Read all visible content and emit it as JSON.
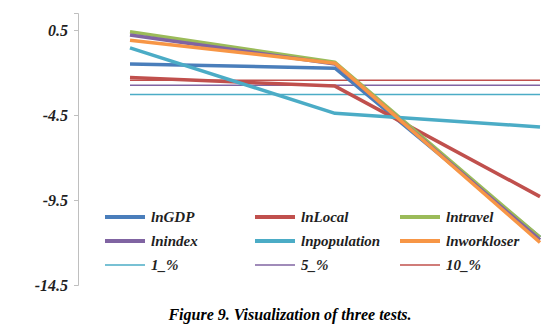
{
  "chart_data": {
    "type": "line",
    "title": "Figure 9. Visualization of three tests.",
    "categories": [
      null,
      null,
      null
    ],
    "series": [
      {
        "name": "lnGDP",
        "color": "#4a7ebb",
        "line_style": "thick",
        "values": [
          -1.5,
          -1.75,
          -11.7
        ]
      },
      {
        "name": "lnLocal",
        "color": "#c0504d",
        "line_style": "thick",
        "values": [
          -2.3,
          -2.8,
          -9.3
        ]
      },
      {
        "name": "lntravel",
        "color": "#9bbb59",
        "line_style": "thick",
        "values": [
          0.4,
          -1.4,
          -11.7
        ]
      },
      {
        "name": "lnindex",
        "color": "#8064a2",
        "line_style": "thick",
        "values": [
          0.2,
          -1.5,
          -11.85
        ]
      },
      {
        "name": "lnpopulation",
        "color": "#4bacc6",
        "line_style": "thick",
        "values": [
          -0.55,
          -4.4,
          -5.2
        ]
      },
      {
        "name": "lnworkloser",
        "color": "#f79646",
        "line_style": "thick",
        "values": [
          -0.1,
          -1.45,
          -12.0
        ]
      },
      {
        "name": "1_%",
        "color": "#4bacc6",
        "line_style": "thin",
        "values": [
          -3.3,
          -3.3,
          -3.3
        ]
      },
      {
        "name": "5_%",
        "color": "#8064a2",
        "line_style": "thin",
        "values": [
          -2.75,
          -2.75,
          -2.75
        ]
      },
      {
        "name": "10_%",
        "color": "#c0504d",
        "line_style": "thin",
        "values": [
          -2.45,
          -2.45,
          -2.45
        ]
      }
    ],
    "ylim": [
      -14.5,
      1.5
    ],
    "yticks": [
      0.5,
      -4.5,
      -9.5,
      -14.5
    ],
    "grid": false,
    "legend": "lower left",
    "tick_labels": "y"
  }
}
